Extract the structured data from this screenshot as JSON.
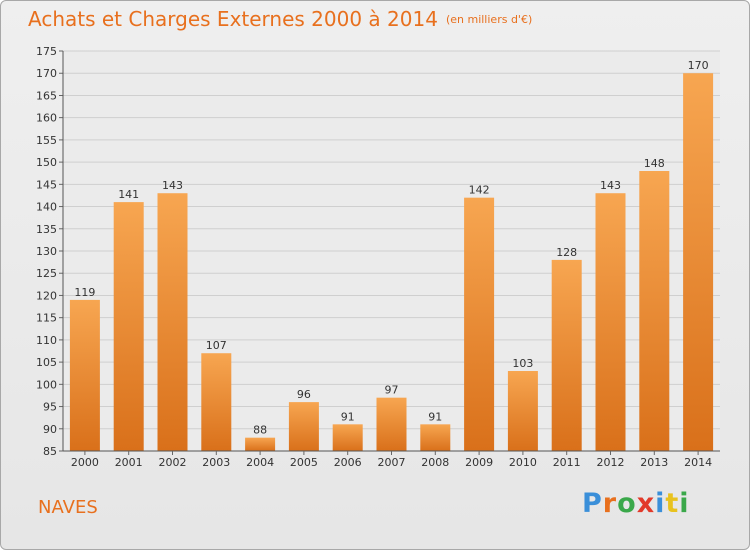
{
  "chart_data": {
    "type": "bar",
    "title": "Achats et Charges Externes 2000 à 2014",
    "subtitle": "(en milliers d'€)",
    "categories": [
      "2000",
      "2001",
      "2002",
      "2003",
      "2004",
      "2005",
      "2006",
      "2007",
      "2008",
      "2009",
      "2010",
      "2011",
      "2012",
      "2013",
      "2014"
    ],
    "values": [
      119,
      141,
      143,
      107,
      88,
      96,
      91,
      97,
      91,
      142,
      103,
      128,
      143,
      148,
      170
    ],
    "ylim": [
      85,
      175
    ],
    "yticks": [
      85,
      90,
      95,
      100,
      105,
      110,
      115,
      120,
      125,
      130,
      135,
      140,
      145,
      150,
      155,
      160,
      165,
      170,
      175
    ],
    "grid": true,
    "bar_color": "#e8801e"
  },
  "footer": {
    "place": "NAVES",
    "logo_letters": [
      "P",
      "r",
      "o",
      "x",
      "i",
      "t",
      "i"
    ],
    "logo_colors": [
      "#3a8fd9",
      "#e8701e",
      "#3aa84a",
      "#e23a2a",
      "#3a8fd9",
      "#e8c21e",
      "#3aa84a"
    ]
  }
}
